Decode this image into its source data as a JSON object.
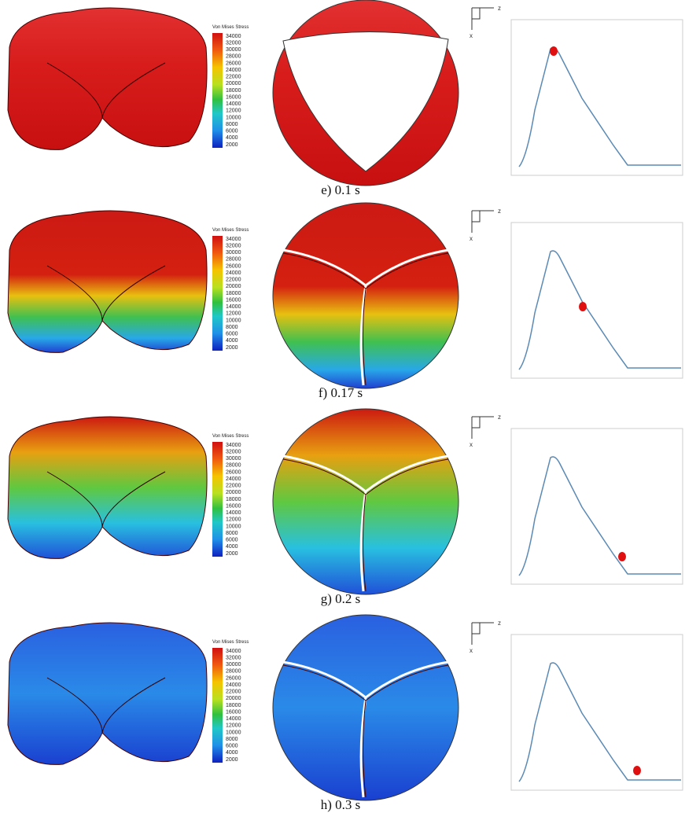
{
  "rows": [
    {
      "caption": "e) 0.1 s",
      "legend": {
        "title": "Von Mises Stress",
        "ticks": [
          "34000",
          "32000",
          "30000",
          "28000",
          "26000",
          "24000",
          "22000",
          "20000",
          "18000",
          "16000",
          "14000",
          "12000",
          "10000",
          "8000",
          "6000",
          "4000",
          "2000"
        ]
      },
      "axes": {
        "horizontal": "z",
        "vertical": "x"
      }
    },
    {
      "caption": "f) 0.17 s",
      "legend": {
        "title": "Von Mises Stress",
        "ticks": [
          "34000",
          "32000",
          "30000",
          "28000",
          "26000",
          "24000",
          "22000",
          "20000",
          "18000",
          "16000",
          "14000",
          "12000",
          "10000",
          "8000",
          "6000",
          "4000",
          "2000"
        ]
      },
      "axes": {
        "horizontal": "z",
        "vertical": "x"
      }
    },
    {
      "caption": "g) 0.2 s",
      "legend": {
        "title": "Von Mises Stress",
        "ticks": [
          "34000",
          "32000",
          "30000",
          "28000",
          "26000",
          "24000",
          "22000",
          "20000",
          "18000",
          "16000",
          "14000",
          "12000",
          "10000",
          "8000",
          "6000",
          "4000",
          "2000"
        ]
      },
      "axes": {
        "horizontal": "z",
        "vertical": "x"
      }
    },
    {
      "caption": "h) 0.3 s",
      "legend": {
        "title": "Von Mises Stress",
        "ticks": [
          "34000",
          "32000",
          "30000",
          "28000",
          "26000",
          "24000",
          "22000",
          "20000",
          "18000",
          "16000",
          "14000",
          "12000",
          "10000",
          "8000",
          "6000",
          "4000",
          "2000"
        ]
      },
      "axes": {
        "horizontal": "z",
        "vertical": "x"
      }
    }
  ]
}
